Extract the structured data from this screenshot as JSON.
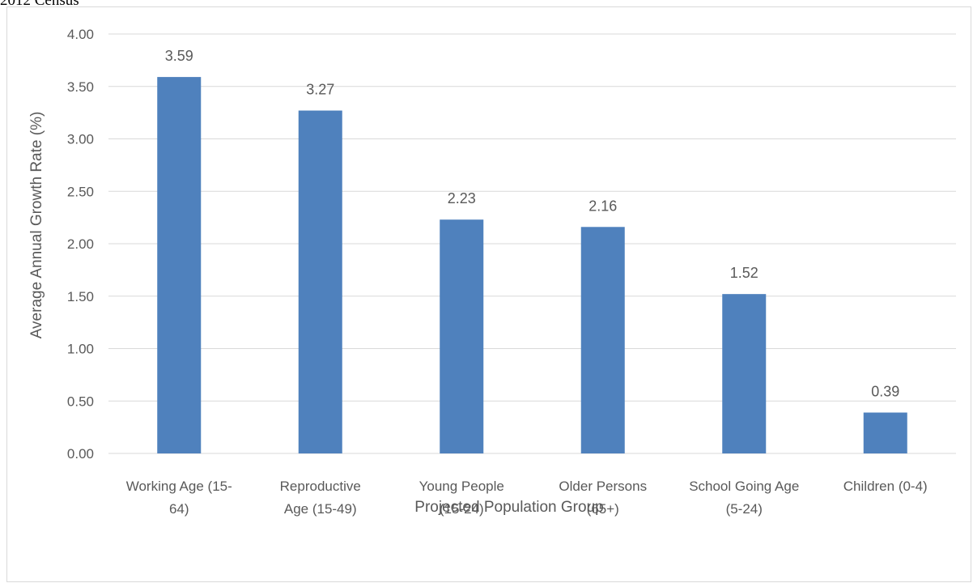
{
  "header": {
    "caption": "2012 Census"
  },
  "chart_data": {
    "type": "bar",
    "title": "",
    "xlabel": "Projected Population Group",
    "ylabel": "Average Annual Growth Rate (%)",
    "categories": [
      [
        "Working Age (15-",
        "64)"
      ],
      [
        "Reproductive",
        "Age (15-49)"
      ],
      [
        "Young People",
        "(15-24)"
      ],
      [
        "Older Persons",
        "(65+)"
      ],
      [
        "School Going Age",
        "(5-24)"
      ],
      [
        "Children (0-4)"
      ]
    ],
    "values": [
      3.59,
      3.27,
      2.23,
      2.16,
      1.52,
      0.39
    ],
    "data_labels": [
      "3.59",
      "3.27",
      "2.23",
      "2.16",
      "1.52",
      "0.39"
    ],
    "ylim": [
      0,
      4
    ],
    "yticks": [
      "0.00",
      "0.50",
      "1.00",
      "1.50",
      "2.00",
      "2.50",
      "3.00",
      "3.50",
      "4.00"
    ],
    "grid": true,
    "legend": "none",
    "colors": {
      "bar": "#4f81bd",
      "grid": "#d9d9d9",
      "text": "#595959"
    }
  }
}
